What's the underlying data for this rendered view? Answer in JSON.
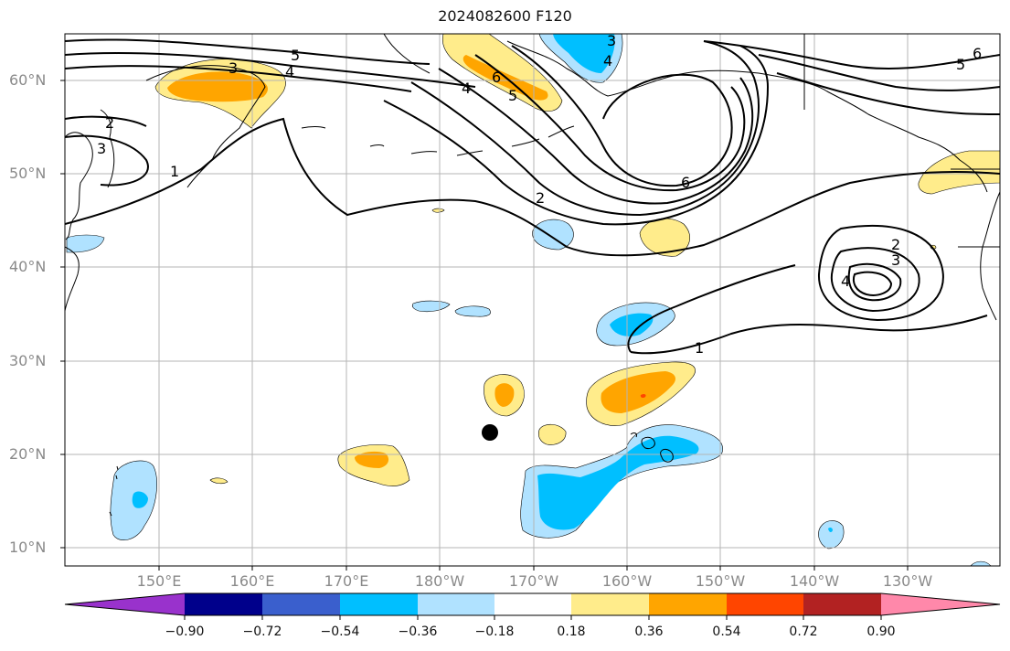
{
  "title": "2024082600 F120",
  "axes": {
    "lat_labels": [
      "60°N",
      "50°N",
      "40°N",
      "30°N",
      "20°N",
      "10°N"
    ],
    "lon_labels": [
      "150°E",
      "160°E",
      "170°E",
      "180°W",
      "170°W",
      "160°W",
      "150°W",
      "140°W",
      "130°W"
    ]
  },
  "colorbar": {
    "ticks": [
      "−0.90",
      "−0.72",
      "−0.54",
      "−0.36",
      "−0.18",
      "0.18",
      "0.36",
      "0.54",
      "0.72",
      "0.90"
    ],
    "colors": [
      "#9932CC",
      "#00008B",
      "#3A5FCD",
      "#00BFFF",
      "#B0E2FF",
      "#FFFFFF",
      "#FFEC8B",
      "#FFA500",
      "#FF4500",
      "#B22222",
      "#FF88AA"
    ]
  },
  "contour_labels": [
    "5",
    "3",
    "4",
    "2",
    "3",
    "1",
    "4",
    "6",
    "5",
    "3",
    "4",
    "2",
    "6",
    "6",
    "5",
    "2",
    "3",
    "4",
    "1"
  ],
  "marker": {
    "label": "",
    "color": "#000000"
  }
}
